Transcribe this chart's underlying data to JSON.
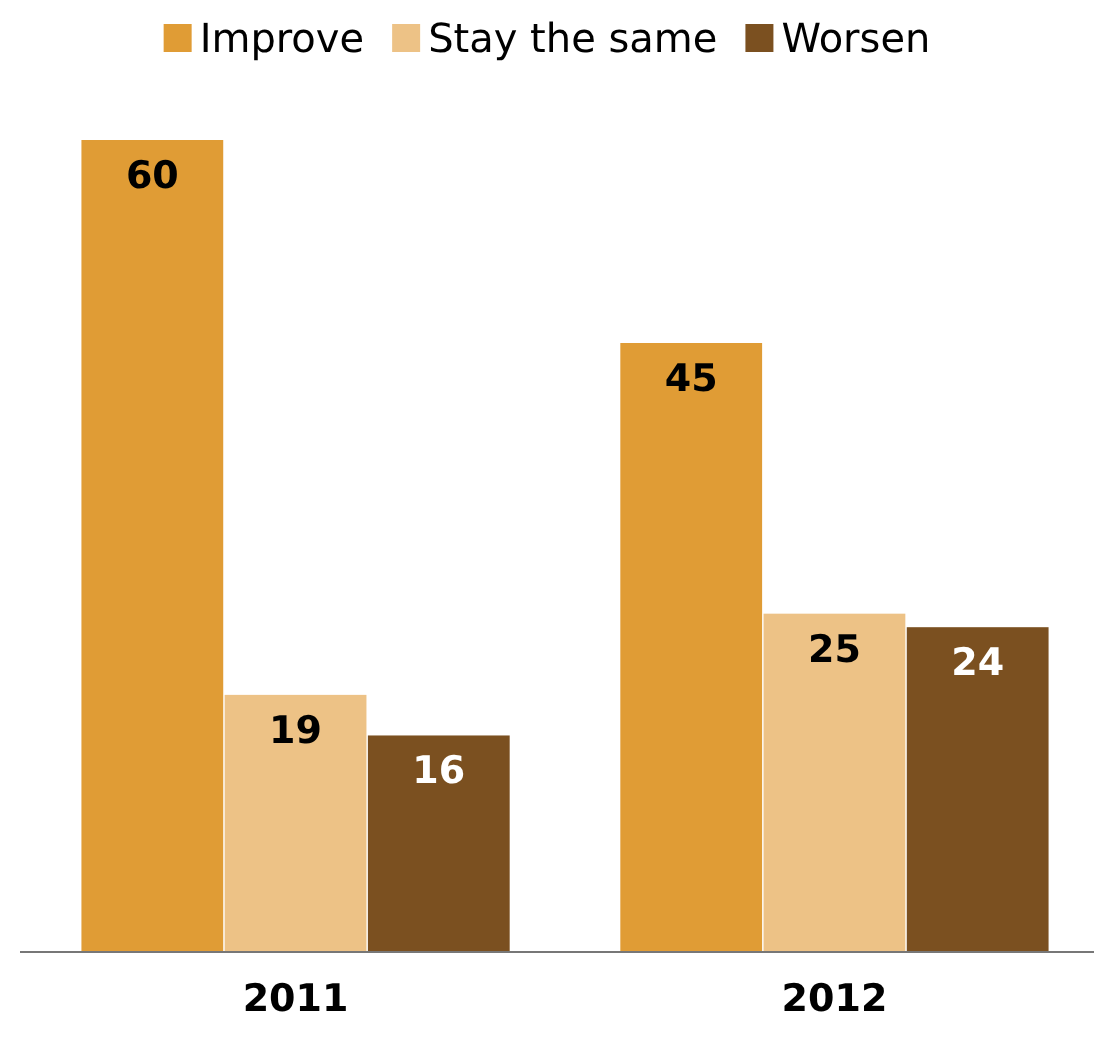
{
  "chart_data": {
    "type": "bar",
    "categories": [
      "2011",
      "2012"
    ],
    "series": [
      {
        "name": "Improve",
        "color": "#e09c35",
        "values": [
          60,
          45
        ]
      },
      {
        "name": "Stay the same",
        "color": "#edc286",
        "values": [
          19,
          25
        ]
      },
      {
        "name": "Worsen",
        "color": "#7b5020",
        "values": [
          16,
          24
        ]
      }
    ],
    "data_labels": true,
    "legend": "top",
    "grid": false
  }
}
